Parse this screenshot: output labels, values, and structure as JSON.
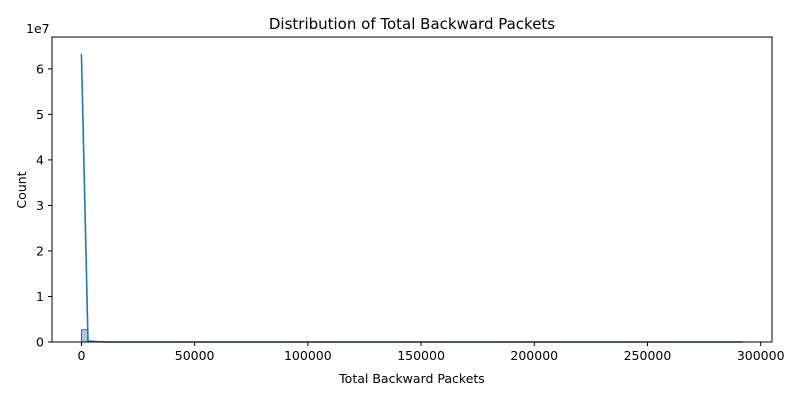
{
  "chart_data": {
    "type": "bar",
    "subtype": "histogram-with-kde",
    "title": "Distribution of Total Backward Packets",
    "xlabel": "Total Backward Packets",
    "ylabel": "Count",
    "y_offset_label": "1e7",
    "xlim": [
      -13000,
      305000
    ],
    "ylim": [
      0,
      6.7
    ],
    "x_ticks": [
      0,
      50000,
      100000,
      150000,
      200000,
      250000,
      300000
    ],
    "x_tick_labels": [
      "0",
      "50000",
      "100000",
      "150000",
      "200000",
      "250000",
      "300000"
    ],
    "y_ticks": [
      0,
      1,
      2,
      3,
      4,
      5,
      6
    ],
    "y_tick_labels": [
      "0",
      "1",
      "2",
      "3",
      "4",
      "5",
      "6"
    ],
    "y_unit_multiplier": 10000000,
    "histogram": {
      "bins": [
        {
          "x0": 0,
          "x1": 2900,
          "count": 0.27
        }
      ]
    },
    "kde": {
      "x": [
        0,
        2900,
        10000,
        50000,
        100000,
        150000,
        200000,
        250000,
        292000
      ],
      "y": [
        6.33,
        0.02,
        0,
        0,
        0,
        0,
        0,
        0,
        0
      ]
    },
    "colors": {
      "bar_fill": "#a6c8e0",
      "bar_edge": "#1f4e70",
      "kde_line": "#1f77b4"
    }
  }
}
